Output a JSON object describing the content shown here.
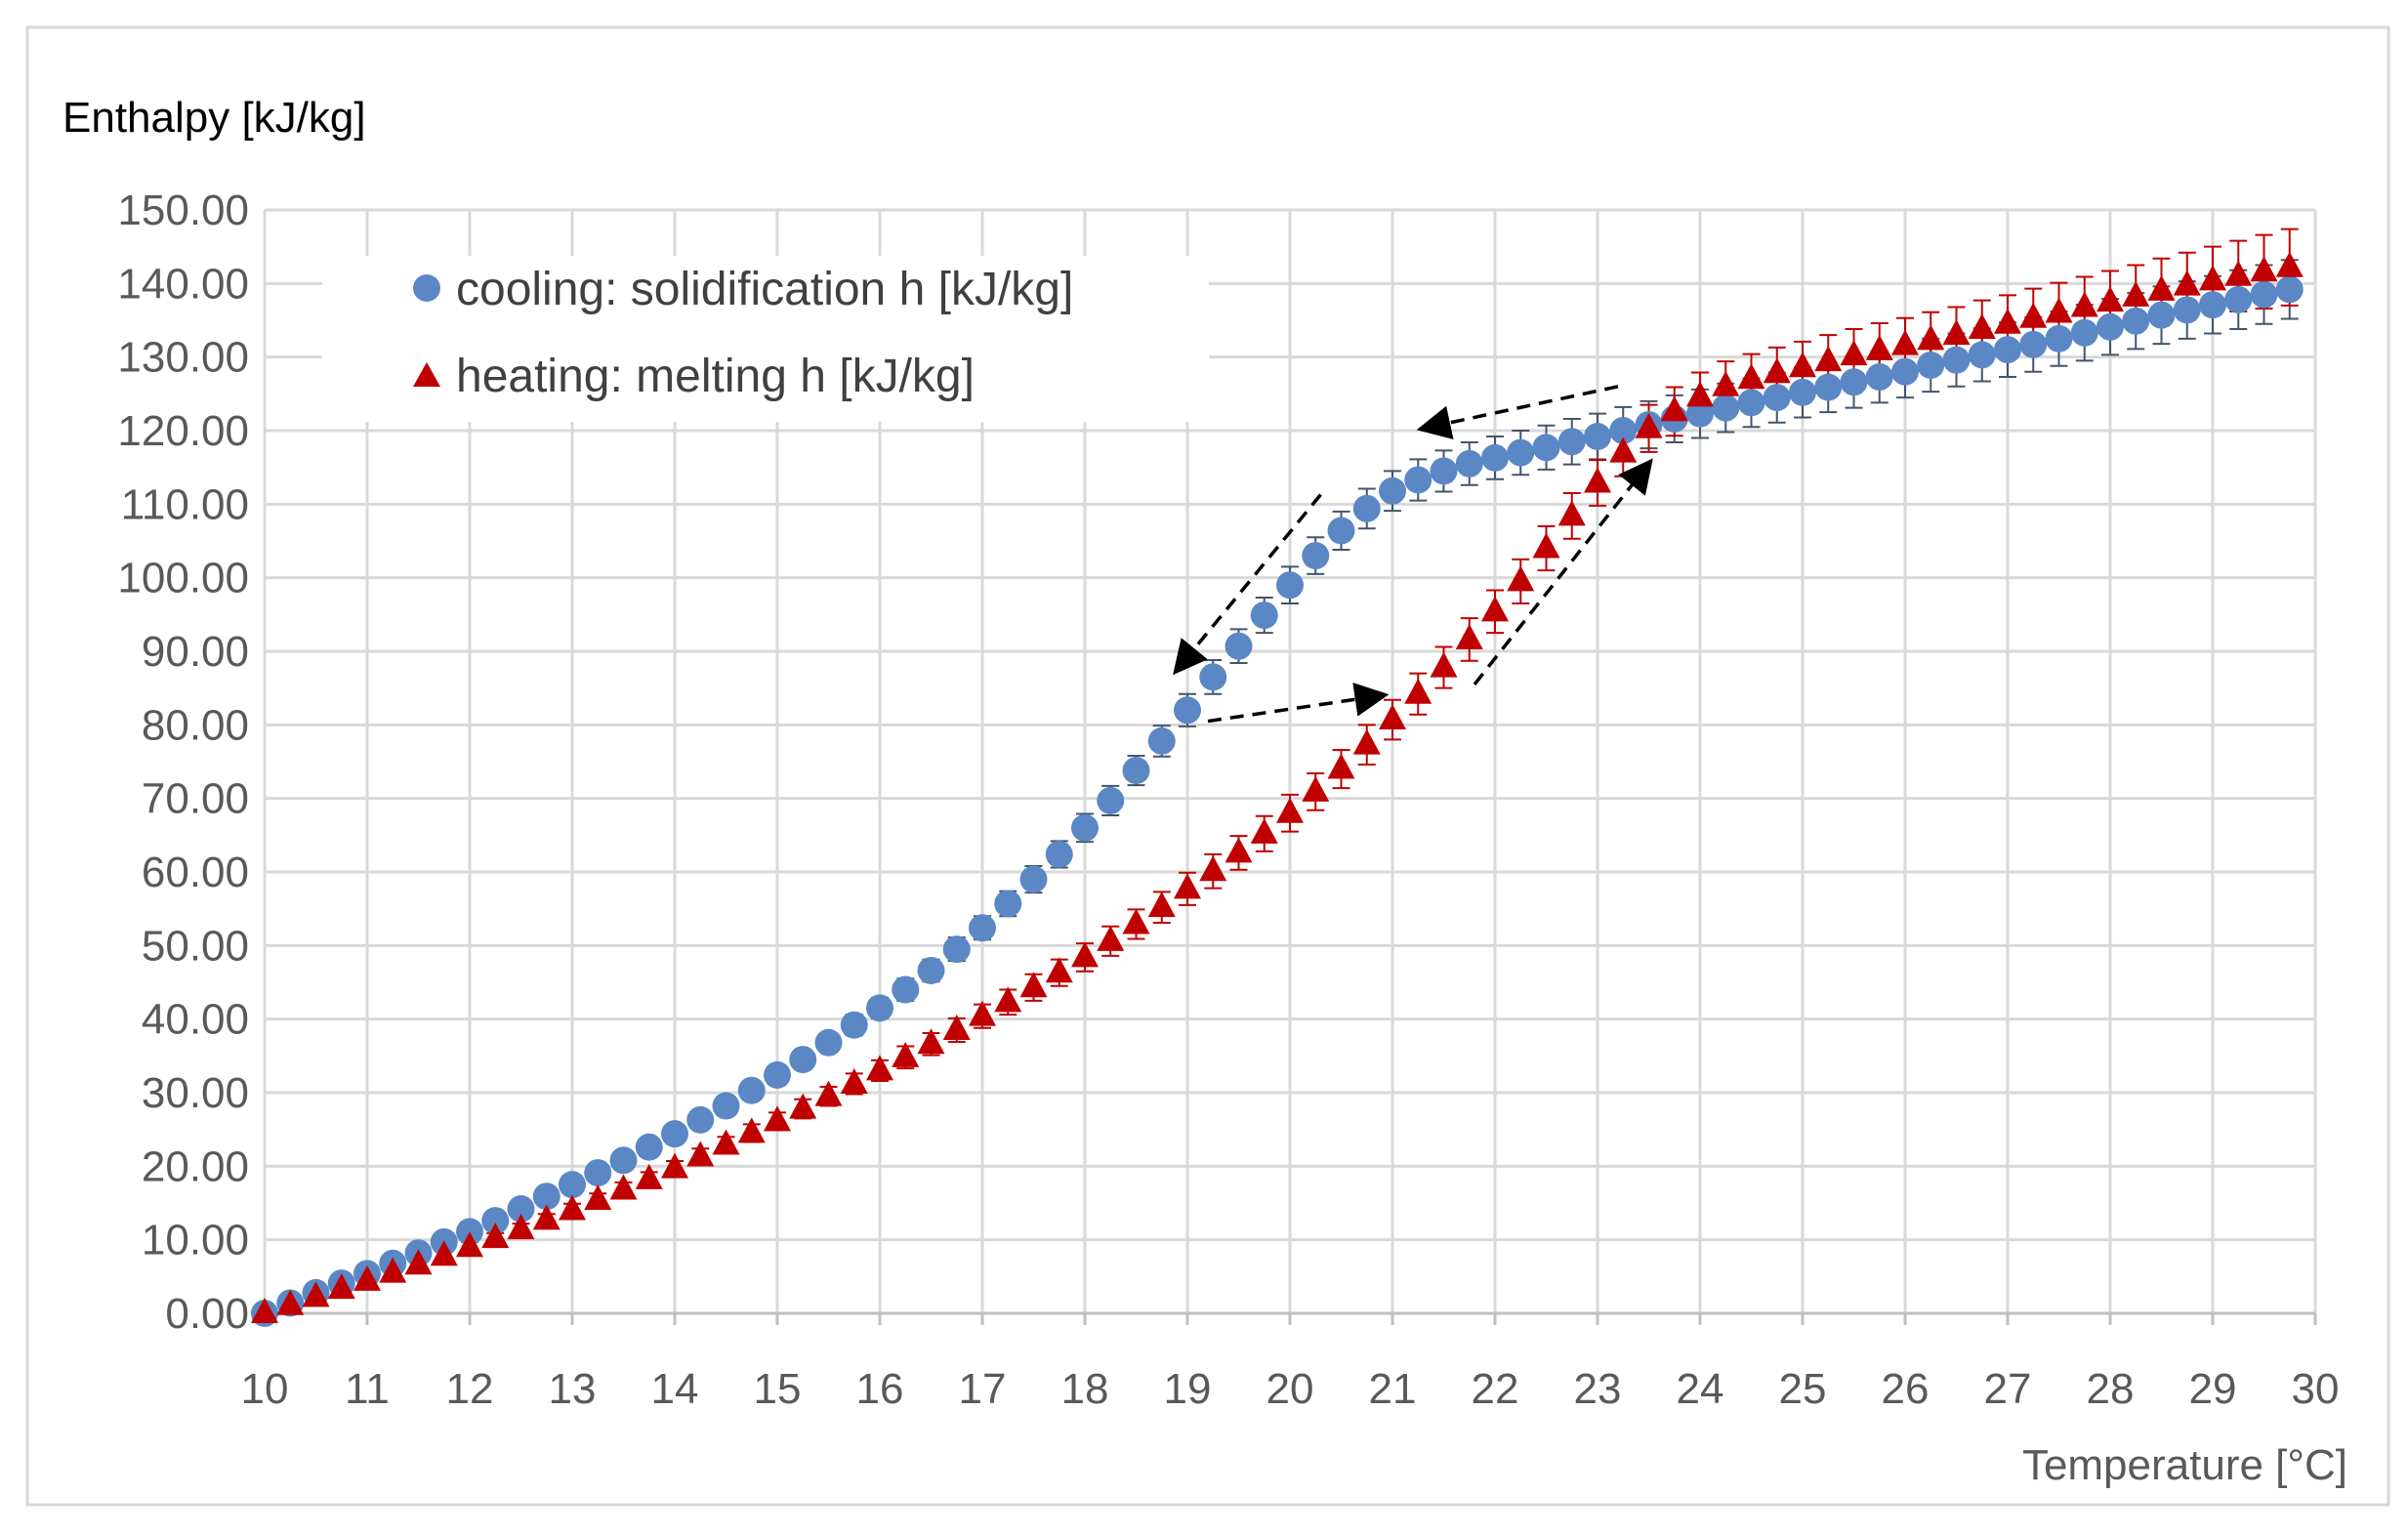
{
  "chart_data": {
    "type": "scatter",
    "title": "",
    "ylabel": "Enthalpy [kJ/kg]",
    "xlabel": "Temperature [°C]",
    "xlim": [
      10,
      30
    ],
    "ylim": [
      0,
      150
    ],
    "grid": true,
    "legend_position": "top-left",
    "x_ticks": [
      10,
      11,
      12,
      13,
      14,
      15,
      16,
      17,
      18,
      19,
      20,
      21,
      22,
      23,
      24,
      25,
      26,
      27,
      28,
      29,
      30
    ],
    "y_ticks": [
      0,
      10,
      20,
      30,
      40,
      50,
      60,
      70,
      80,
      90,
      100,
      110,
      120,
      130,
      140,
      150
    ],
    "x_tick_labels": [
      "10",
      "11",
      "12",
      "13",
      "14",
      "15",
      "16",
      "17",
      "18",
      "19",
      "20",
      "21",
      "22",
      "23",
      "24",
      "25",
      "26",
      "27",
      "28",
      "29",
      "30"
    ],
    "y_tick_labels": [
      "0.00",
      "10.00",
      "20.00",
      "30.00",
      "40.00",
      "50.00",
      "60.00",
      "70.00",
      "80.00",
      "90.00",
      "100.00",
      "110.00",
      "120.00",
      "130.00",
      "140.00",
      "150.00"
    ],
    "series": [
      {
        "name": "cooling: solidification h [kJ/kg]",
        "marker": "circle",
        "color": "#5B87C5",
        "error_color": "#44546A",
        "x": [
          10,
          10.25,
          10.5,
          10.75,
          11,
          11.25,
          11.5,
          11.75,
          12,
          12.25,
          12.5,
          12.75,
          13,
          13.25,
          13.5,
          13.75,
          14,
          14.25,
          14.5,
          14.75,
          15,
          15.25,
          15.5,
          15.75,
          16,
          16.25,
          16.5,
          16.75,
          17,
          17.25,
          17.5,
          17.75,
          18,
          18.25,
          18.5,
          18.75,
          19,
          19.25,
          19.5,
          19.75,
          20,
          20.25,
          20.5,
          20.75,
          21,
          21.25,
          21.5,
          21.75,
          22,
          22.25,
          22.5,
          22.75,
          23,
          23.25,
          23.5,
          23.75,
          24,
          24.25,
          24.5,
          24.75,
          25,
          25.25,
          25.5,
          25.75,
          26,
          26.25,
          26.5,
          26.75,
          27,
          27.25,
          27.5,
          27.75,
          28,
          28.25,
          28.5,
          28.75,
          29,
          29.25,
          29.5,
          29.75
        ],
        "y": [
          0,
          1.4,
          2.8,
          4.1,
          5.4,
          6.8,
          8.2,
          9.7,
          11.1,
          12.6,
          14.2,
          15.9,
          17.5,
          19.1,
          20.8,
          22.6,
          24.4,
          26.3,
          28.2,
          30.3,
          32.4,
          34.5,
          36.8,
          39.2,
          41.5,
          44.0,
          46.6,
          49.5,
          52.4,
          55.7,
          59.0,
          62.4,
          66.0,
          69.7,
          73.8,
          77.8,
          82.0,
          86.5,
          90.7,
          94.9,
          99.0,
          103.0,
          106.4,
          109.4,
          111.8,
          113.3,
          114.5,
          115.5,
          116.3,
          117.0,
          117.7,
          118.5,
          119.2,
          120.0,
          120.8,
          121.6,
          122.3,
          123.1,
          123.8,
          124.5,
          125.2,
          125.9,
          126.6,
          127.3,
          128.0,
          128.9,
          129.6,
          130.3,
          131.0,
          131.7,
          132.5,
          133.3,
          134.1,
          134.9,
          135.7,
          136.4,
          137.1,
          137.8,
          138.5,
          139.2
        ],
        "error": [
          0.3,
          0.3,
          0.4,
          0.4,
          0.5,
          0.5,
          0.6,
          0.6,
          0.7,
          0.7,
          0.8,
          0.8,
          0.9,
          0.9,
          1.0,
          1.0,
          1.0,
          1.1,
          1.1,
          1.2,
          1.2,
          1.3,
          1.3,
          1.4,
          1.4,
          1.5,
          1.5,
          1.6,
          1.6,
          1.7,
          1.8,
          1.8,
          1.9,
          2.0,
          2.0,
          2.1,
          2.2,
          2.3,
          2.3,
          2.4,
          2.5,
          2.5,
          2.6,
          2.7,
          2.7,
          2.8,
          2.8,
          2.9,
          2.9,
          3.0,
          3.0,
          3.1,
          3.1,
          3.2,
          3.2,
          3.2,
          3.3,
          3.3,
          3.3,
          3.4,
          3.4,
          3.4,
          3.5,
          3.5,
          3.5,
          3.6,
          3.6,
          3.6,
          3.7,
          3.7,
          3.7,
          3.8,
          3.8,
          3.8,
          3.9,
          3.9,
          3.9,
          4.0,
          4.0,
          4.0
        ]
      },
      {
        "name": "heating: melting h [kJ/kg]",
        "marker": "triangle",
        "color": "#C00000",
        "error_color": "#C00000",
        "x": [
          10,
          10.25,
          10.5,
          10.75,
          11,
          11.25,
          11.5,
          11.75,
          12,
          12.25,
          12.5,
          12.75,
          13,
          13.25,
          13.5,
          13.75,
          14,
          14.25,
          14.5,
          14.75,
          15,
          15.25,
          15.5,
          15.75,
          16,
          16.25,
          16.5,
          16.75,
          17,
          17.25,
          17.5,
          17.75,
          18,
          18.25,
          18.5,
          18.75,
          19,
          19.25,
          19.5,
          19.75,
          20,
          20.25,
          20.5,
          20.75,
          21,
          21.25,
          21.5,
          21.75,
          22,
          22.25,
          22.5,
          22.75,
          23,
          23.25,
          23.5,
          23.75,
          24,
          24.25,
          24.5,
          24.75,
          25,
          25.25,
          25.5,
          25.75,
          26,
          26.25,
          26.5,
          26.75,
          27,
          27.25,
          27.5,
          27.75,
          28,
          28.25,
          28.5,
          28.75,
          29,
          29.25,
          29.5,
          29.75
        ],
        "y": [
          0,
          1.1,
          2.2,
          3.3,
          4.4,
          5.5,
          6.6,
          7.8,
          9.0,
          10.2,
          11.4,
          12.7,
          14.0,
          15.4,
          16.8,
          18.2,
          19.7,
          21.3,
          22.9,
          24.5,
          26.1,
          27.8,
          29.5,
          31.2,
          33.0,
          34.8,
          36.6,
          38.5,
          40.4,
          42.3,
          44.3,
          46.3,
          48.4,
          50.6,
          52.9,
          55.2,
          57.7,
          60.1,
          62.6,
          65.2,
          68.0,
          70.9,
          74.0,
          77.3,
          80.7,
          84.2,
          87.8,
          91.6,
          95.4,
          99.5,
          104.0,
          108.4,
          112.9,
          117.0,
          120.3,
          122.6,
          124.6,
          126.0,
          127.0,
          127.8,
          128.6,
          129.4,
          130.2,
          130.9,
          131.6,
          132.3,
          133.0,
          133.8,
          134.5,
          135.3,
          136.0,
          136.8,
          137.5,
          138.2,
          139.0,
          139.7,
          140.4,
          141.0,
          141.6,
          142.2
        ],
        "error": [
          0.3,
          0.3,
          0.4,
          0.4,
          0.5,
          0.5,
          0.6,
          0.6,
          0.7,
          0.7,
          0.8,
          0.8,
          0.9,
          0.9,
          1.0,
          1.0,
          1.0,
          1.1,
          1.1,
          1.2,
          1.2,
          1.3,
          1.3,
          1.4,
          1.4,
          1.5,
          1.5,
          1.6,
          1.6,
          1.7,
          1.8,
          1.8,
          1.9,
          2.0,
          2.0,
          2.1,
          2.2,
          2.3,
          2.3,
          2.4,
          2.5,
          2.5,
          2.6,
          2.7,
          2.7,
          2.8,
          2.8,
          2.9,
          2.9,
          3.0,
          3.0,
          3.1,
          3.1,
          3.2,
          3.2,
          3.3,
          3.3,
          3.4,
          3.4,
          3.5,
          3.5,
          3.6,
          3.6,
          3.7,
          3.7,
          3.8,
          3.8,
          3.9,
          3.9,
          4.0,
          4.1,
          4.1,
          4.2,
          4.3,
          4.4,
          4.5,
          4.6,
          4.8,
          5.0,
          5.2
        ]
      }
    ],
    "annotations": [
      {
        "name": "arrow-cooling-upper",
        "from": [
          23.2,
          126.0
        ],
        "to": [
          21.3,
          120.3
        ]
      },
      {
        "name": "arrow-cooling-steep",
        "from": [
          20.3,
          111.3
        ],
        "to": [
          18.9,
          87.5
        ]
      },
      {
        "name": "arrow-heating-lower",
        "from": [
          19.2,
          80.5
        ],
        "to": [
          20.9,
          84.0
        ]
      },
      {
        "name": "arrow-heating-steep",
        "from": [
          21.8,
          85.5
        ],
        "to": [
          23.5,
          115.5
        ]
      }
    ]
  }
}
